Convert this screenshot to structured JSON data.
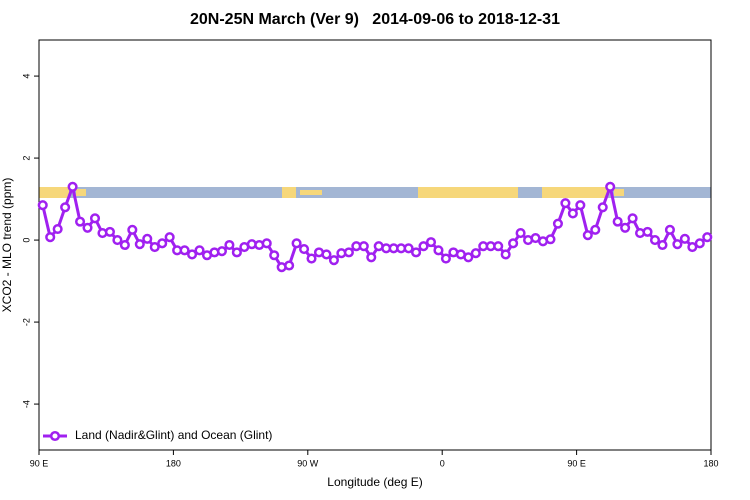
{
  "chart_data": {
    "type": "line",
    "title": "20N-25N March (Ver 9)   2014-09-06 to 2018-12-31",
    "x_label": "Longitude (deg E)",
    "y_label": "XCO2 - MLO trend (ppm)",
    "xlim": [
      90,
      540
    ],
    "xticks": [
      {
        "value": 90,
        "label": "90 E"
      },
      {
        "value": 180,
        "label": "180"
      },
      {
        "value": 270,
        "label": "90 W"
      },
      {
        "value": 360,
        "label": "0"
      },
      {
        "value": 450,
        "label": "90 E"
      },
      {
        "value": 540,
        "label": "180"
      }
    ],
    "ylim": [
      -5.12,
      4.88
    ],
    "yticks": [
      -4,
      -2,
      0,
      2,
      4
    ],
    "legend": "bottomleft",
    "x": [
      92.5,
      97.5,
      102.5,
      107.5,
      112.5,
      117.5,
      122.5,
      127.5,
      132.5,
      137.5,
      142.5,
      147.5,
      152.5,
      157.5,
      162.5,
      167.5,
      172.5,
      177.5,
      182.5,
      187.5,
      192.5,
      197.5,
      202.5,
      207.5,
      212.5,
      217.5,
      222.5,
      227.5,
      232.5,
      237.5,
      242.5,
      247.5,
      252.5,
      257.5,
      262.5,
      267.5,
      272.5,
      277.5,
      282.5,
      287.5,
      292.5,
      297.5,
      302.5,
      307.5,
      312.5,
      317.5,
      322.5,
      327.5,
      332.5,
      337.5,
      342.5,
      347.5,
      352.5,
      357.5,
      362.5,
      367.5,
      372.5,
      377.5,
      382.5,
      387.5,
      392.5,
      397.5,
      402.5,
      407.5,
      412.5,
      417.5,
      422.5,
      427.5,
      432.5,
      437.5,
      442.5,
      447.5,
      452.5,
      457.5,
      462.5,
      467.5,
      472.5,
      477.5,
      482.5,
      487.5,
      492.5,
      497.5,
      502.5,
      507.5,
      512.5,
      517.5,
      522.5,
      527.5,
      532.5,
      537.5
    ],
    "series": [
      {
        "name": "Land (Nadir&Glint) and Ocean (Glint)",
        "color": "#a020f0",
        "values": [
          0.85,
          0.07,
          0.27,
          0.8,
          1.3,
          0.45,
          0.3,
          0.53,
          0.17,
          0.2,
          0,
          -0.12,
          0.25,
          -0.1,
          0.03,
          -0.17,
          -0.08,
          0.07,
          -0.25,
          -0.25,
          -0.35,
          -0.25,
          -0.37,
          -0.3,
          -0.27,
          -0.12,
          -0.3,
          -0.17,
          -0.1,
          -0.12,
          -0.08,
          -0.37,
          -0.66,
          -0.62,
          -0.08,
          -0.22,
          -0.45,
          -0.3,
          -0.35,
          -0.49,
          -0.32,
          -0.3,
          -0.15,
          -0.15,
          -0.42,
          -0.15,
          -0.2,
          -0.2,
          -0.2,
          -0.2,
          -0.3,
          -0.15,
          -0.05,
          -0.25,
          -0.45,
          -0.3,
          -0.35,
          -0.42,
          -0.32,
          -0.15,
          -0.15,
          -0.15,
          -0.35,
          -0.08,
          0.17,
          0,
          0.05,
          -0.03,
          0.02,
          0.4,
          0.9,
          0.65,
          0.85,
          0.12,
          0.25,
          0.8,
          1.3,
          0.45,
          0.3,
          0.53,
          0.17,
          0.2,
          0,
          -0.12,
          0.25,
          -0.1,
          0.03,
          -0.17,
          -0.08,
          0.07
        ]
      }
    ]
  }
}
